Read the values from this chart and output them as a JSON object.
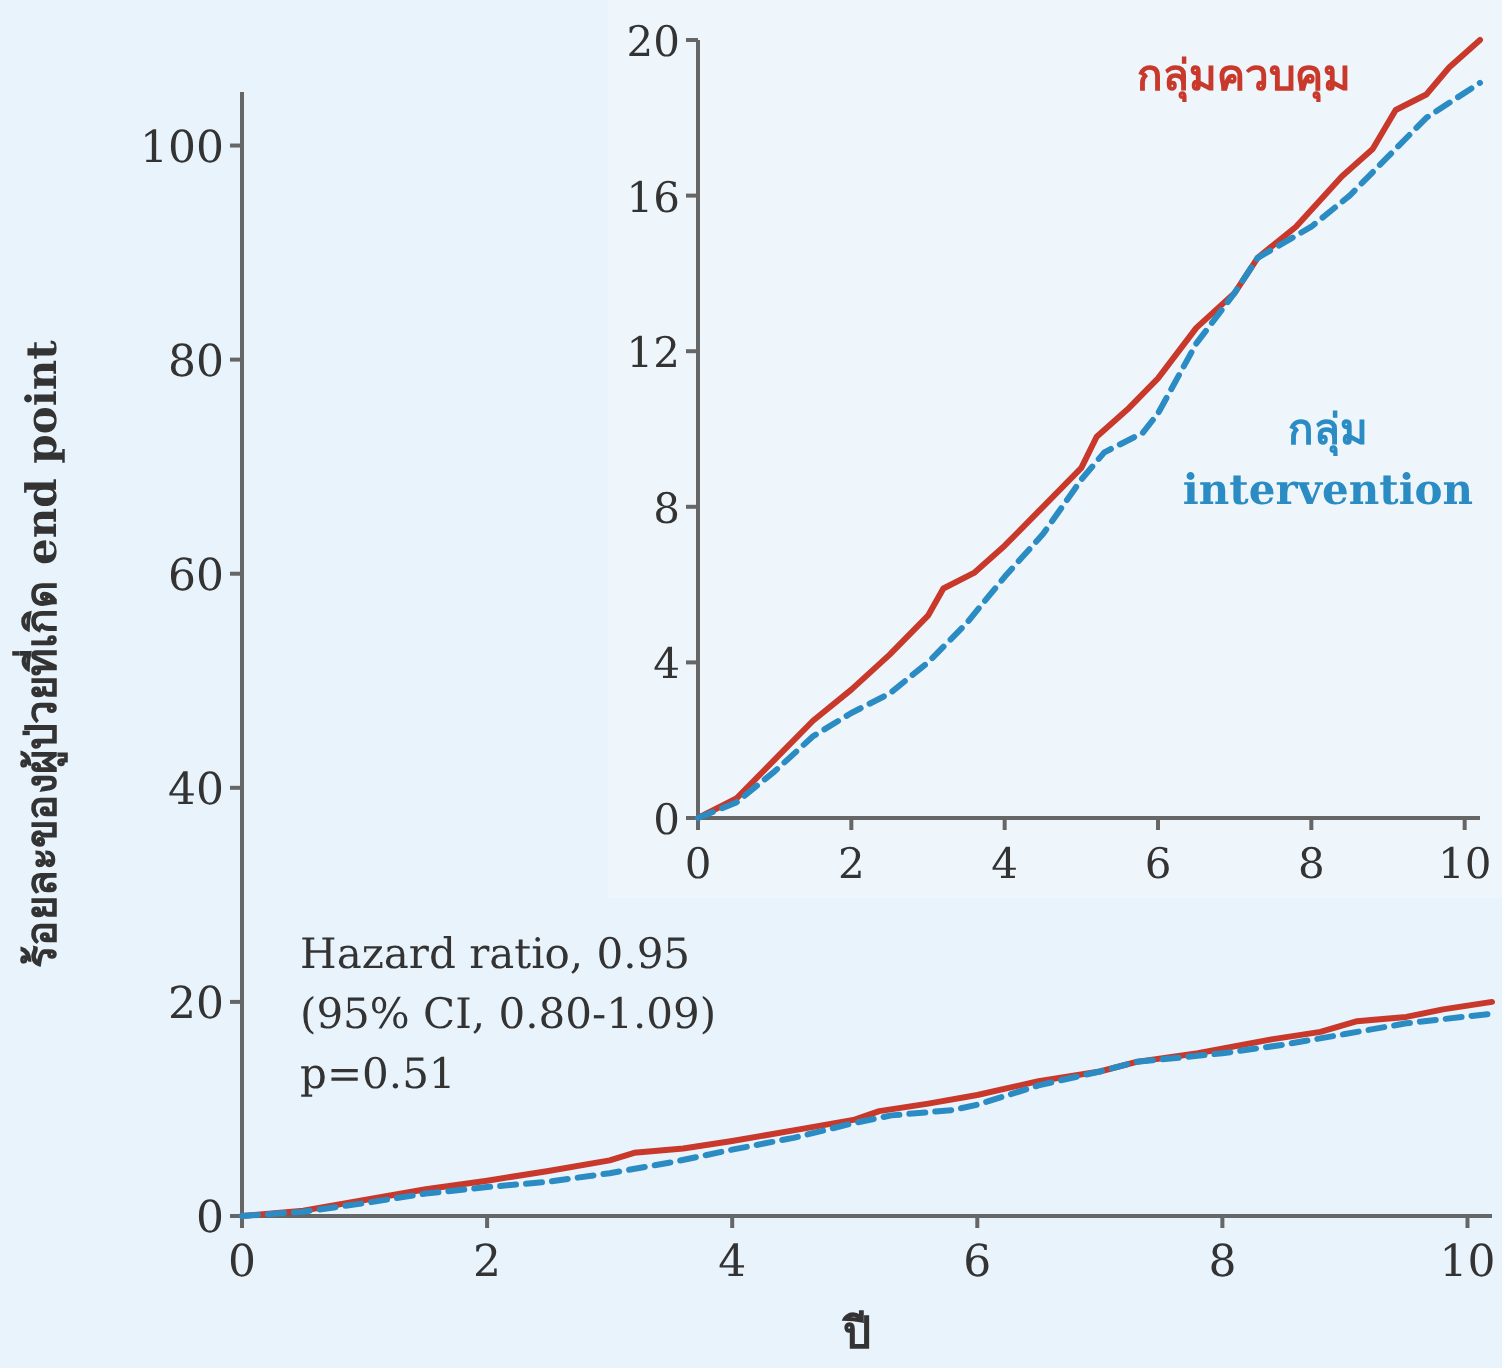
{
  "chart_data": [
    {
      "type": "line",
      "xlabel": "ปี",
      "ylabel": "ร้อยละของผู้ป่วยที่เกิด end point",
      "xlim": [
        0,
        10.2
      ],
      "ylim": [
        0,
        105
      ],
      "xticks": [
        0,
        2,
        4,
        6,
        8,
        10
      ],
      "yticks": [
        0,
        20,
        40,
        60,
        80,
        100
      ],
      "annotations": [
        "Hazard ratio, 0.95",
        "(95% CI, 0.80-1.09)",
        "p=0.51"
      ],
      "series": [
        {
          "color": "#c8392b",
          "line_style": "solid",
          "x": [
            0,
            0.5,
            1,
            1.5,
            2,
            2.5,
            3,
            3.2,
            3.6,
            4,
            4.5,
            5,
            5.2,
            5.6,
            6,
            6.5,
            7,
            7.3,
            7.8,
            8.4,
            8.8,
            9.1,
            9.5,
            9.8,
            10.2
          ],
          "values": [
            0,
            0.5,
            1.5,
            2.5,
            3.3,
            4.2,
            5.2,
            5.9,
            6.3,
            7,
            8,
            9,
            9.8,
            10.5,
            11.3,
            12.6,
            13.5,
            14.4,
            15.2,
            16.5,
            17.2,
            18.2,
            18.6,
            19.3,
            20
          ]
        },
        {
          "color": "#2b8cc4",
          "line_style": "dashed",
          "x": [
            0,
            0.5,
            1,
            1.5,
            2,
            2.5,
            3,
            3.5,
            4,
            4.5,
            5,
            5.3,
            5.8,
            6,
            6.5,
            7,
            7.3,
            8,
            8.5,
            9,
            9.5,
            10.2
          ],
          "values": [
            0,
            0.4,
            1.2,
            2.1,
            2.7,
            3.2,
            4,
            5,
            6.2,
            7.3,
            8.7,
            9.4,
            9.9,
            10.4,
            12.2,
            13.5,
            14.4,
            15.2,
            16,
            17,
            18,
            18.9
          ]
        }
      ]
    },
    {
      "type": "line",
      "xlim": [
        0,
        10.2
      ],
      "ylim": [
        0,
        20
      ],
      "xticks": [
        0,
        2,
        4,
        6,
        8,
        10
      ],
      "yticks": [
        0,
        4,
        8,
        12,
        16,
        20
      ],
      "series": [
        {
          "name": "กลุ่มควบคุม",
          "color": "#c8392b",
          "line_style": "solid",
          "x": [
            0,
            0.5,
            1,
            1.5,
            2,
            2.5,
            3,
            3.2,
            3.6,
            4,
            4.5,
            5,
            5.2,
            5.6,
            6,
            6.5,
            7,
            7.3,
            7.8,
            8.4,
            8.8,
            9.1,
            9.5,
            9.8,
            10.2
          ],
          "values": [
            0,
            0.5,
            1.5,
            2.5,
            3.3,
            4.2,
            5.2,
            5.9,
            6.3,
            7,
            8,
            9,
            9.8,
            10.5,
            11.3,
            12.6,
            13.5,
            14.4,
            15.2,
            16.5,
            17.2,
            18.2,
            18.6,
            19.3,
            20
          ]
        },
        {
          "name": "กลุ่ม intervention",
          "color": "#2b8cc4",
          "line_style": "dashed",
          "x": [
            0,
            0.5,
            1,
            1.5,
            2,
            2.5,
            3,
            3.5,
            4,
            4.5,
            5,
            5.3,
            5.8,
            6,
            6.5,
            7,
            7.3,
            8,
            8.5,
            9,
            9.5,
            10.2
          ],
          "values": [
            0,
            0.4,
            1.2,
            2.1,
            2.7,
            3.2,
            4,
            5,
            6.2,
            7.3,
            8.7,
            9.4,
            9.9,
            10.4,
            12.2,
            13.5,
            14.4,
            15.2,
            16,
            17,
            18,
            18.9
          ]
        }
      ]
    }
  ]
}
